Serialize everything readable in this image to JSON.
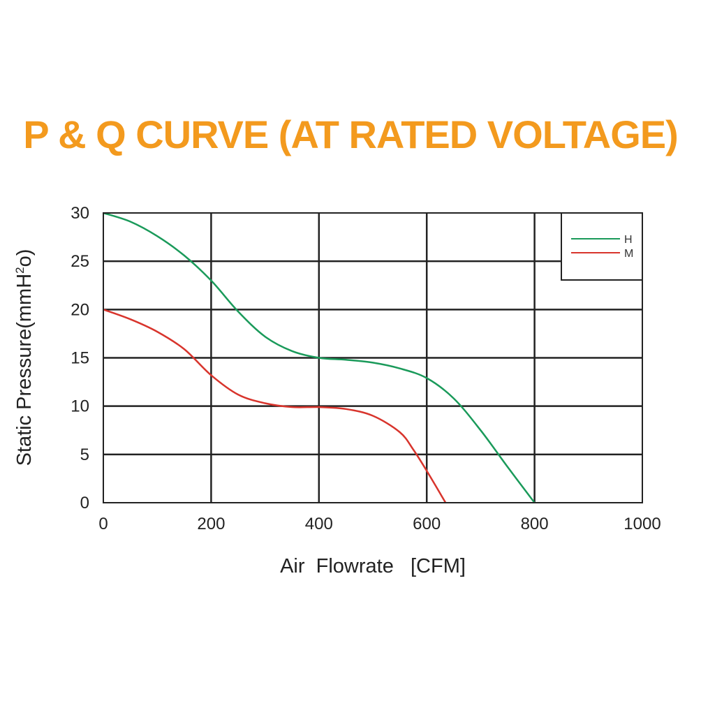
{
  "chart_data": {
    "type": "line",
    "title": "P & Q CURVE (AT RATED VOLTAGE)",
    "xlabel": "Air  Flowrate   [CFM]",
    "ylabel": "Static Pressure(mmH",
    "ylabel_sup": "2",
    "ylabel_end": "o)",
    "xlim": [
      0,
      1000
    ],
    "ylim": [
      0,
      30
    ],
    "xticks": [
      "0",
      "200",
      "400",
      "600",
      "800",
      "1000"
    ],
    "yticks": [
      "0",
      "5",
      "10",
      "15",
      "20",
      "25",
      "30"
    ],
    "grid": true,
    "legend_position": "top-right",
    "series": [
      {
        "name": "H",
        "color": "#1a9a5a",
        "x": [
          0,
          50,
          100,
          150,
          200,
          250,
          300,
          350,
          400,
          450,
          500,
          550,
          600,
          650,
          700,
          750,
          800
        ],
        "y": [
          30,
          29.1,
          27.6,
          25.6,
          23,
          19.8,
          17.2,
          15.7,
          15,
          14.8,
          14.5,
          13.9,
          12.9,
          10.8,
          7.5,
          3.7,
          0
        ]
      },
      {
        "name": "M",
        "color": "#d8342c",
        "x": [
          0,
          50,
          100,
          150,
          200,
          250,
          300,
          350,
          400,
          450,
          500,
          550,
          575,
          600,
          635
        ],
        "y": [
          20,
          19,
          17.7,
          15.9,
          13.2,
          11.2,
          10.3,
          9.9,
          9.9,
          9.7,
          9,
          7.3,
          5.5,
          3.3,
          0
        ]
      }
    ]
  }
}
